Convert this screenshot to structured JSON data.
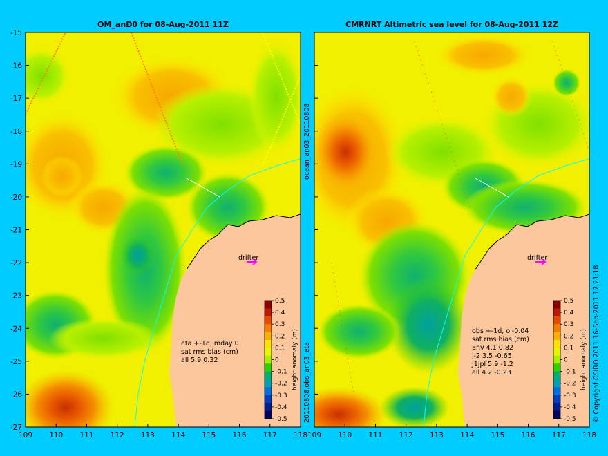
{
  "colors": {
    "background": "#00ccff",
    "land": "#fdc79e",
    "drifter": "#ff00ff",
    "track": "#ffff00",
    "coast_line": "#00ffff"
  },
  "left_panel": {
    "title": "OM_anD0 for 08-Aug-2011 11Z",
    "stats": [
      "eta +-1d, mday 0",
      "sat rms bias (cm)",
      "all 5.9 0.32"
    ],
    "drifter_label": "drifter"
  },
  "right_panel": {
    "title": "CMRNRT Altimetric sea level  for 08-Aug-2011 12Z",
    "stats": [
      "obs +-1d, oi-0.04",
      "sat rms bias (cm)",
      "Env   4.1 0.82",
      "J-2   3.5 -0.65",
      "J1jpl 5.9 -1.2",
      "all 4.2 -0.23"
    ],
    "drifter_label": "drifter"
  },
  "side_labels": {
    "middle_top": "ocean_an03_20110808",
    "middle_bottom": "20110808.obs_an03_eta",
    "right_edge": "© Copyright CSIRO 2011   16-Sep-2011 17:21:18"
  },
  "colorbar": {
    "label": "height anomaly (m)",
    "ticks": [
      "0.5",
      "0.4",
      "0.3",
      "0.2",
      "0.1",
      "0",
      "-0.1",
      "-0.2",
      "-0.3",
      "-0.4",
      "-0.5"
    ],
    "colors": [
      "#8b0000",
      "#c01800",
      "#e84800",
      "#f57e00",
      "#f9b000",
      "#ffe000",
      "#e6f500",
      "#a8f000",
      "#30d000",
      "#00b070",
      "#00a0b0",
      "#0070e0",
      "#0040c0",
      "#001e90",
      "#000060"
    ]
  },
  "chart_data": [
    {
      "type": "heatmap",
      "title": "OM_anD0 for 08-Aug-2011 11Z",
      "x_ticks": [
        "109",
        "110",
        "111",
        "112",
        "113",
        "114",
        "115",
        "116",
        "117",
        "118"
      ],
      "y_ticks": [
        "-15",
        "-16",
        "-17",
        "-18",
        "-19",
        "-20",
        "-21",
        "-22",
        "-23",
        "-24",
        "-25",
        "-26",
        "-27"
      ],
      "xlim": [
        109,
        118
      ],
      "ylim": [
        -27,
        -15
      ],
      "colorbar_label": "height anomaly (m)",
      "colorbar_range": [
        -0.5,
        0.5
      ],
      "annotations": [
        "eta +-1d, mday 0",
        "sat rms bias (cm)",
        "all 5.9 0.32",
        "drifter"
      ]
    },
    {
      "type": "heatmap",
      "title": "CMRNRT Altimetric sea level  for 08-Aug-2011 12Z",
      "x_ticks": [
        "109",
        "110",
        "111",
        "112",
        "113",
        "114",
        "115",
        "116",
        "117",
        "118"
      ],
      "y_ticks": [
        "-15",
        "-16",
        "-17",
        "-18",
        "-19",
        "-20",
        "-21",
        "-22",
        "-23",
        "-24",
        "-25",
        "-26",
        "-27"
      ],
      "xlim": [
        109,
        118
      ],
      "ylim": [
        -27,
        -15
      ],
      "colorbar_label": "height anomaly (m)",
      "colorbar_range": [
        -0.5,
        0.5
      ],
      "annotations": [
        "obs +-1d, oi-0.04",
        "sat rms bias (cm)",
        "Env 4.1 0.82",
        "J-2 3.5 -0.65",
        "J1jpl 5.9 -1.2",
        "all 4.2 -0.23",
        "drifter"
      ]
    }
  ]
}
